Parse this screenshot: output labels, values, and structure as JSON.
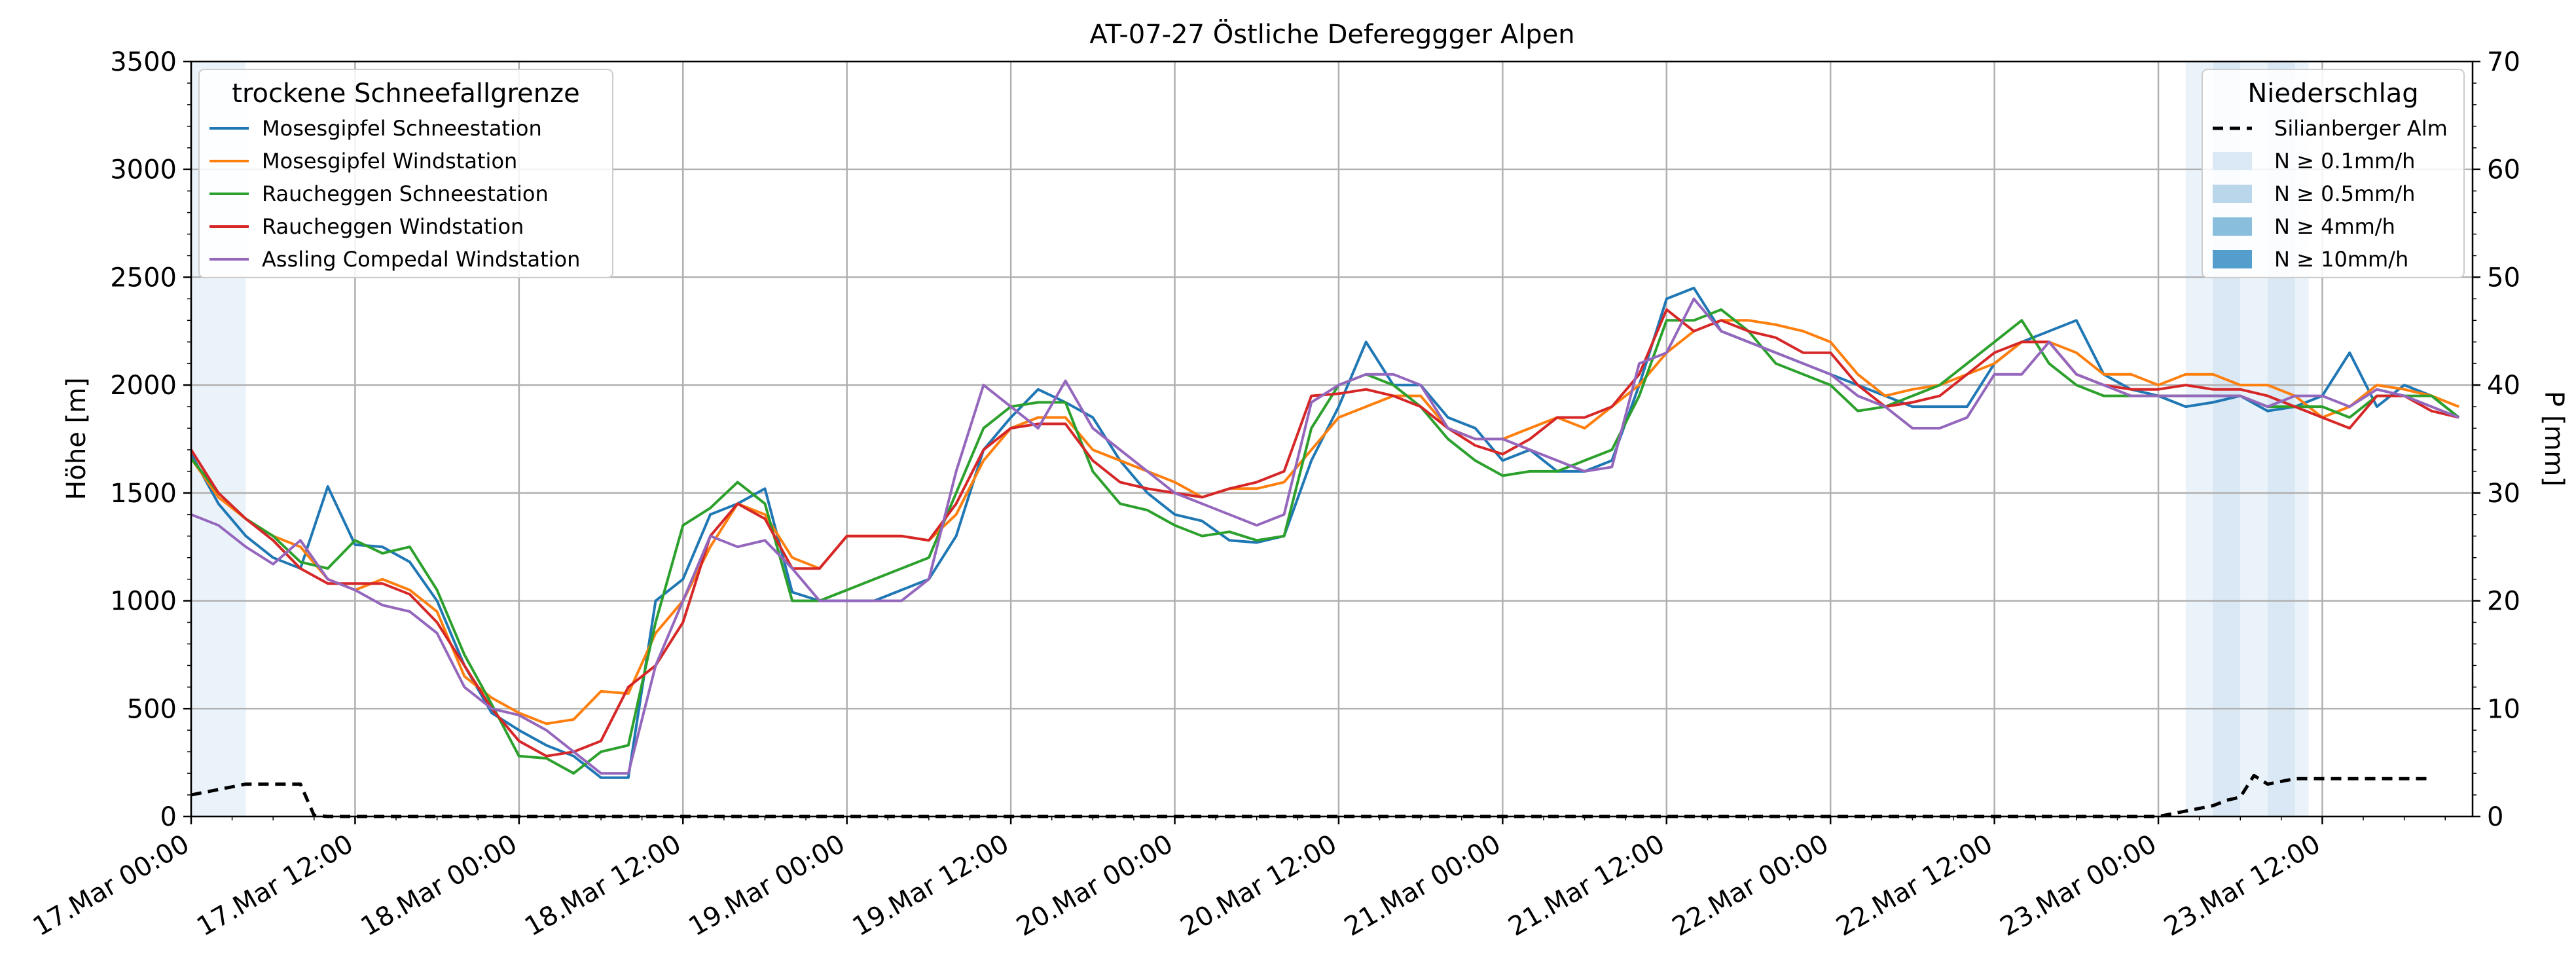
{
  "chart_data": {
    "type": "line",
    "title": "AT-07-27 Östliche Defereggger Alpen",
    "ylabel": "Höhe [m]",
    "y2label": "P [mm]",
    "ylim": [
      0,
      3500
    ],
    "y2lim": [
      0,
      70
    ],
    "yticks": [
      "0",
      "500",
      "1000",
      "1500",
      "2000",
      "2500",
      "3000",
      "3500"
    ],
    "y2ticks": [
      "0",
      "10",
      "20",
      "30",
      "40",
      "50",
      "60",
      "70"
    ],
    "xlim_hours": [
      0,
      167
    ],
    "xticks": [
      {
        "label": "17.Mar 00:00",
        "hour": 0
      },
      {
        "label": "17.Mar 12:00",
        "hour": 12
      },
      {
        "label": "18.Mar 00:00",
        "hour": 24
      },
      {
        "label": "18.Mar 12:00",
        "hour": 36
      },
      {
        "label": "19.Mar 00:00",
        "hour": 48
      },
      {
        "label": "19.Mar 12:00",
        "hour": 60
      },
      {
        "label": "20.Mar 00:00",
        "hour": 72
      },
      {
        "label": "20.Mar 12:00",
        "hour": 84
      },
      {
        "label": "21.Mar 00:00",
        "hour": 96
      },
      {
        "label": "21.Mar 12:00",
        "hour": 108
      },
      {
        "label": "22.Mar 00:00",
        "hour": 120
      },
      {
        "label": "22.Mar 12:00",
        "hour": 132
      },
      {
        "label": "23.Mar 00:00",
        "hour": 144
      },
      {
        "label": "23.Mar 12:00",
        "hour": 156
      }
    ],
    "grid": true,
    "legend_left": {
      "title": "trockene Schneefallgrenze",
      "placement": "top-left"
    },
    "legend_right": {
      "title": "Niederschlag",
      "placement": "top-right",
      "items": [
        {
          "label": "Silianberger Alm",
          "kind": "dashed",
          "color": "#000000"
        },
        {
          "label": "N ≥ 0.1mm/h",
          "kind": "patch",
          "color": "#dbe9f6"
        },
        {
          "label": "N ≥ 0.5mm/h",
          "kind": "patch",
          "color": "#bad6eb"
        },
        {
          "label": "N ≥ 4mm/h",
          "kind": "patch",
          "color": "#89bedc"
        },
        {
          "label": "N ≥ 10mm/h",
          "kind": "patch",
          "color": "#539ecd"
        }
      ]
    },
    "series": [
      {
        "name": "Mosesgipfel Schneestation",
        "color": "#1f77b4",
        "x": [
          0,
          2,
          4,
          6,
          8,
          10,
          12,
          14,
          16,
          18,
          20,
          22,
          24,
          26,
          28,
          30,
          32,
          34,
          36,
          38,
          40,
          42,
          44,
          46,
          48,
          50,
          52,
          54,
          56,
          58,
          60,
          62,
          64,
          66,
          68,
          70,
          72,
          74,
          76,
          78,
          80,
          82,
          84,
          86,
          88,
          90,
          92,
          94,
          96,
          98,
          100,
          102,
          104,
          106,
          108,
          110,
          112,
          114,
          116,
          118,
          120,
          122,
          124,
          126,
          128,
          130,
          132,
          134,
          136,
          138,
          140,
          142,
          144,
          146,
          148,
          150,
          152,
          154,
          156,
          158,
          160,
          162,
          164,
          166
        ],
        "y": [
          1680,
          1450,
          1300,
          1200,
          1150,
          1530,
          1260,
          1250,
          1180,
          1000,
          700,
          480,
          400,
          330,
          280,
          180,
          180,
          1000,
          1100,
          1400,
          1450,
          1520,
          1040,
          1000,
          1000,
          1000,
          1050,
          1100,
          1300,
          1700,
          1850,
          1980,
          1920,
          1850,
          1650,
          1500,
          1400,
          1370,
          1280,
          1270,
          1300,
          1650,
          1900,
          2200,
          2000,
          2000,
          1850,
          1800,
          1650,
          1700,
          1600,
          1600,
          1650,
          2000,
          2400,
          2450,
          2250,
          2200,
          2150,
          2100,
          2050,
          2000,
          1950,
          1900,
          1900,
          1900,
          2100,
          2200,
          2250,
          2300,
          2050,
          1980,
          1950,
          1900,
          1920,
          1950,
          1880,
          1900,
          1950,
          2150,
          1900,
          2000,
          1950,
          1850
        ]
      },
      {
        "name": "Mosesgipfel Windstation",
        "color": "#ff7f0e",
        "x": [
          0,
          2,
          4,
          6,
          8,
          10,
          12,
          14,
          16,
          18,
          20,
          22,
          24,
          26,
          28,
          30,
          32,
          34,
          36,
          38,
          40,
          42,
          44,
          46,
          48,
          50,
          52,
          54,
          56,
          58,
          60,
          62,
          64,
          66,
          68,
          70,
          72,
          74,
          76,
          78,
          80,
          82,
          84,
          86,
          88,
          90,
          92,
          94,
          96,
          98,
          100,
          102,
          104,
          106,
          108,
          110,
          112,
          114,
          116,
          118,
          120,
          122,
          124,
          126,
          128,
          130,
          132,
          134,
          136,
          138,
          140,
          142,
          144,
          146,
          148,
          150,
          152,
          154,
          156,
          158,
          160,
          162,
          164,
          166
        ],
        "y": [
          1660,
          1480,
          1380,
          1300,
          1250,
          1100,
          1050,
          1100,
          1050,
          950,
          650,
          550,
          480,
          430,
          450,
          580,
          570,
          850,
          1000,
          1250,
          1450,
          1400,
          1200,
          1150,
          1300,
          1300,
          1300,
          1280,
          1400,
          1650,
          1800,
          1850,
          1850,
          1700,
          1650,
          1600,
          1550,
          1480,
          1520,
          1520,
          1550,
          1700,
          1850,
          1900,
          1950,
          1950,
          1800,
          1750,
          1750,
          1800,
          1850,
          1800,
          1900,
          2000,
          2150,
          2250,
          2300,
          2300,
          2280,
          2250,
          2200,
          2050,
          1950,
          1980,
          2000,
          2050,
          2100,
          2200,
          2200,
          2150,
          2050,
          2050,
          2000,
          2050,
          2050,
          2000,
          2000,
          1950,
          1850,
          1900,
          2000,
          1980,
          1950,
          1900
        ]
      },
      {
        "name": "Raucheggen Schneestation",
        "color": "#2ca02c",
        "x": [
          0,
          2,
          4,
          6,
          8,
          10,
          12,
          14,
          16,
          18,
          20,
          22,
          24,
          26,
          28,
          30,
          32,
          34,
          36,
          38,
          40,
          42,
          44,
          46,
          48,
          50,
          52,
          54,
          56,
          58,
          60,
          62,
          64,
          66,
          68,
          70,
          72,
          74,
          76,
          78,
          80,
          82,
          84,
          86,
          88,
          90,
          92,
          94,
          96,
          98,
          100,
          102,
          104,
          106,
          108,
          110,
          112,
          114,
          116,
          118,
          120,
          122,
          124,
          126,
          128,
          130,
          132,
          134,
          136,
          138,
          140,
          142,
          144,
          146,
          148,
          150,
          152,
          154,
          156,
          158,
          160,
          162,
          164,
          166
        ],
        "y": [
          1660,
          1500,
          1380,
          1300,
          1180,
          1150,
          1280,
          1220,
          1250,
          1050,
          750,
          520,
          280,
          270,
          200,
          300,
          330,
          900,
          1350,
          1430,
          1550,
          1450,
          1000,
          1000,
          1050,
          1100,
          1150,
          1200,
          1500,
          1800,
          1900,
          1920,
          1920,
          1600,
          1450,
          1420,
          1350,
          1300,
          1320,
          1280,
          1300,
          1800,
          2000,
          2050,
          2000,
          1900,
          1750,
          1650,
          1580,
          1600,
          1600,
          1650,
          1700,
          1950,
          2300,
          2300,
          2350,
          2250,
          2100,
          2050,
          2000,
          1880,
          1900,
          1950,
          2000,
          2100,
          2200,
          2300,
          2100,
          2000,
          1950,
          1950,
          1950,
          1950,
          1950,
          1950,
          1900,
          1900,
          1900,
          1850,
          1950,
          1950,
          1950,
          1850
        ]
      },
      {
        "name": "Raucheggen Windstation",
        "color": "#d62728",
        "x": [
          0,
          2,
          4,
          6,
          8,
          10,
          12,
          14,
          16,
          18,
          20,
          22,
          24,
          26,
          28,
          30,
          32,
          34,
          36,
          38,
          40,
          42,
          44,
          46,
          48,
          50,
          52,
          54,
          56,
          58,
          60,
          62,
          64,
          66,
          68,
          70,
          72,
          74,
          76,
          78,
          80,
          82,
          84,
          86,
          88,
          90,
          92,
          94,
          96,
          98,
          100,
          102,
          104,
          106,
          108,
          110,
          112,
          114,
          116,
          118,
          120,
          122,
          124,
          126,
          128,
          130,
          132,
          134,
          136,
          138,
          140,
          142,
          144,
          146,
          148,
          150,
          152,
          154,
          156,
          158,
          160,
          162,
          164,
          166
        ],
        "y": [
          1700,
          1500,
          1380,
          1280,
          1150,
          1080,
          1080,
          1080,
          1030,
          900,
          700,
          500,
          350,
          280,
          300,
          350,
          600,
          700,
          900,
          1300,
          1450,
          1380,
          1150,
          1150,
          1300,
          1300,
          1300,
          1280,
          1450,
          1700,
          1800,
          1820,
          1820,
          1650,
          1550,
          1520,
          1500,
          1480,
          1520,
          1550,
          1600,
          1950,
          1960,
          1980,
          1950,
          1900,
          1800,
          1720,
          1680,
          1750,
          1850,
          1850,
          1900,
          2050,
          2350,
          2250,
          2300,
          2250,
          2220,
          2150,
          2150,
          2000,
          1900,
          1920,
          1950,
          2050,
          2150,
          2200,
          2200,
          2050,
          2000,
          1980,
          1980,
          2000,
          1980,
          1980,
          1950,
          1900,
          1850,
          1800,
          1950,
          1950,
          1880,
          1850
        ]
      },
      {
        "name": "Assling Compedal Windstation",
        "color": "#9467bd",
        "x": [
          0,
          2,
          4,
          6,
          8,
          10,
          12,
          14,
          16,
          18,
          20,
          22,
          24,
          26,
          28,
          30,
          32,
          34,
          36,
          38,
          40,
          42,
          44,
          46,
          48,
          50,
          52,
          54,
          56,
          58,
          60,
          62,
          64,
          66,
          68,
          70,
          72,
          74,
          76,
          78,
          80,
          82,
          84,
          86,
          88,
          90,
          92,
          94,
          96,
          98,
          100,
          102,
          104,
          106,
          108,
          110,
          112,
          114,
          116,
          118,
          120,
          122,
          124,
          126,
          128,
          130,
          132,
          134,
          136,
          138,
          140,
          142,
          144,
          146,
          148,
          150,
          152,
          154,
          156,
          158,
          160,
          162,
          164,
          166
        ],
        "y": [
          1400,
          1350,
          1250,
          1170,
          1280,
          1100,
          1050,
          980,
          950,
          850,
          600,
          500,
          470,
          400,
          300,
          200,
          200,
          700,
          1000,
          1300,
          1250,
          1280,
          1150,
          1000,
          1000,
          1000,
          1000,
          1100,
          1600,
          2000,
          1900,
          1800,
          2020,
          1800,
          1700,
          1600,
          1500,
          1450,
          1400,
          1350,
          1400,
          1920,
          2000,
          2050,
          2050,
          2000,
          1800,
          1750,
          1750,
          1700,
          1650,
          1600,
          1620,
          2100,
          2150,
          2400,
          2250,
          2200,
          2150,
          2100,
          2050,
          1950,
          1900,
          1800,
          1800,
          1850,
          2050,
          2050,
          2200,
          2050,
          2000,
          1950,
          1950,
          1950,
          1950,
          1950,
          1900,
          1950,
          1950,
          1900,
          1980,
          1950,
          1900,
          1850
        ]
      },
      {
        "name": "Silianberger Alm",
        "axis": "right",
        "color": "#000000",
        "dashed": true,
        "x": [
          0,
          2,
          4,
          6,
          8,
          9,
          10,
          11,
          12,
          14,
          16,
          20,
          24,
          30,
          36,
          48,
          60,
          72,
          84,
          96,
          108,
          120,
          132,
          144,
          146,
          148,
          149,
          150,
          151,
          152,
          154,
          156,
          158,
          160,
          162,
          164
        ],
        "y": [
          2,
          2.5,
          3,
          3,
          3,
          0.1,
          0,
          0,
          0,
          0,
          0,
          0,
          0,
          0,
          0,
          0,
          0,
          0,
          0,
          0,
          0,
          0,
          0,
          0,
          0.5,
          1,
          1.5,
          1.8,
          3.8,
          3,
          3.5,
          3.5,
          3.5,
          3.5,
          3.5,
          3.5
        ]
      }
    ],
    "precip_bands": [
      {
        "start_hour": 0,
        "end_hour": 4,
        "level": "N ≥ 0.1mm/h"
      },
      {
        "start_hour": 146,
        "end_hour": 148,
        "level": "N ≥ 0.1mm/h"
      },
      {
        "start_hour": 148,
        "end_hour": 150,
        "level": "N ≥ 0.5mm/h"
      },
      {
        "start_hour": 150,
        "end_hour": 152,
        "level": "N ≥ 0.1mm/h"
      },
      {
        "start_hour": 152,
        "end_hour": 154,
        "level": "N ≥ 0.5mm/h"
      },
      {
        "start_hour": 154,
        "end_hour": 155,
        "level": "N ≥ 0.1mm/h"
      }
    ]
  }
}
